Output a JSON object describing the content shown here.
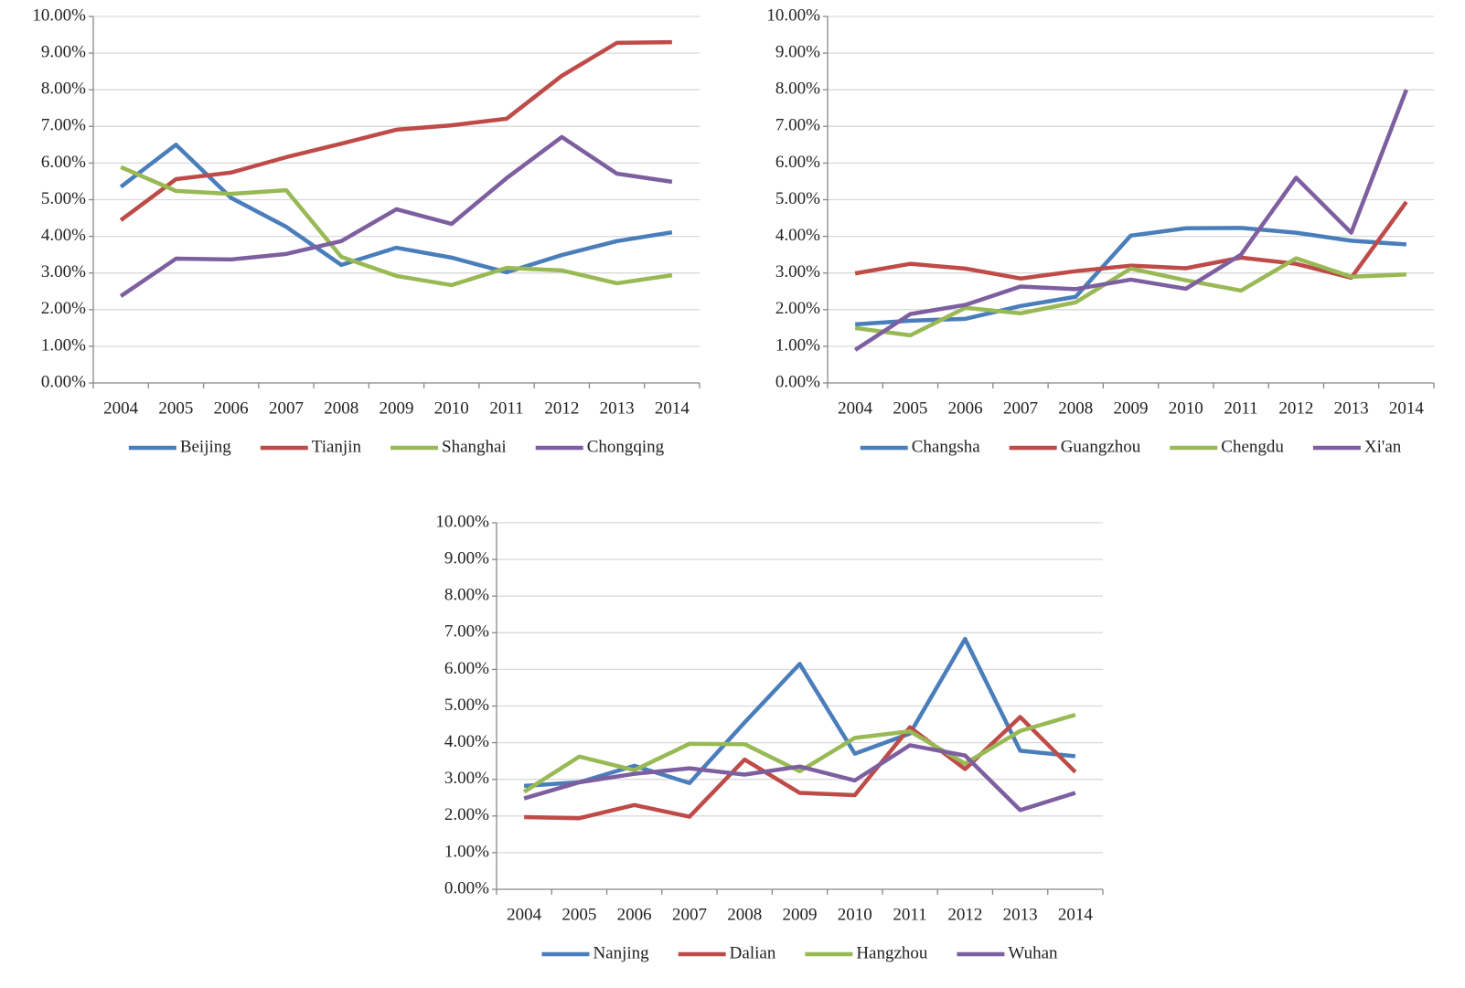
{
  "chart_data": [
    {
      "type": "line",
      "categories": [
        "2004",
        "2005",
        "2006",
        "2007",
        "2008",
        "2009",
        "2010",
        "2011",
        "2012",
        "2013",
        "2014"
      ],
      "series": [
        {
          "name": "Beijing",
          "color": "#4a7ebb",
          "values": [
            5.35,
            6.5,
            5.05,
            4.26,
            3.22,
            3.69,
            3.42,
            3.02,
            3.49,
            3.87,
            4.11
          ]
        },
        {
          "name": "Tianjin",
          "color": "#be4b48",
          "values": [
            4.44,
            5.56,
            5.74,
            6.16,
            6.53,
            6.91,
            7.03,
            7.21,
            8.38,
            9.28,
            9.3
          ]
        },
        {
          "name": "Shanghai",
          "color": "#98b954",
          "values": [
            5.89,
            5.24,
            5.16,
            5.26,
            3.44,
            2.92,
            2.67,
            3.14,
            3.07,
            2.72,
            2.94
          ]
        },
        {
          "name": "Chongqing",
          "color": "#7d5fa0",
          "values": [
            2.37,
            3.39,
            3.37,
            3.52,
            3.87,
            4.74,
            4.34,
            5.59,
            6.71,
            5.71,
            5.49
          ]
        }
      ],
      "ylim": [
        0,
        10
      ],
      "yticks": [
        {
          "value": 0,
          "label": "0.00%"
        },
        {
          "value": 1,
          "label": "1.00%"
        },
        {
          "value": 2,
          "label": "2.00%"
        },
        {
          "value": 3,
          "label": "3.00%"
        },
        {
          "value": 4,
          "label": "4.00%"
        },
        {
          "value": 5,
          "label": "5.00%"
        },
        {
          "value": 6,
          "label": "6.00%"
        },
        {
          "value": 7,
          "label": "7.00%"
        },
        {
          "value": 8,
          "label": "8.00%"
        },
        {
          "value": 9,
          "label": "9.00%"
        },
        {
          "value": 10,
          "label": "10.00%"
        }
      ],
      "grid": true
    },
    {
      "type": "line",
      "categories": [
        "2004",
        "2005",
        "2006",
        "2007",
        "2008",
        "2009",
        "2010",
        "2011",
        "2012",
        "2013",
        "2014"
      ],
      "series": [
        {
          "name": "Changsha",
          "color": "#4a7ebb",
          "values": [
            1.6,
            1.7,
            1.75,
            2.1,
            2.35,
            4.02,
            4.22,
            4.23,
            4.1,
            3.88,
            3.78
          ]
        },
        {
          "name": "Guangzhou",
          "color": "#be4b48",
          "values": [
            2.99,
            3.25,
            3.12,
            2.85,
            3.05,
            3.2,
            3.13,
            3.42,
            3.25,
            2.87,
            4.94
          ]
        },
        {
          "name": "Chengdu",
          "color": "#98b954",
          "values": [
            1.5,
            1.3,
            2.05,
            1.9,
            2.2,
            3.12,
            2.8,
            2.52,
            3.4,
            2.9,
            2.96
          ]
        },
        {
          "name": "Xi'an",
          "color": "#7d5fa0",
          "values": [
            0.9,
            1.88,
            2.13,
            2.63,
            2.56,
            2.82,
            2.57,
            3.5,
            5.6,
            4.1,
            8.0
          ]
        }
      ],
      "ylim": [
        0,
        10
      ],
      "yticks": [
        {
          "value": 0,
          "label": "0.00%"
        },
        {
          "value": 1,
          "label": "1.00%"
        },
        {
          "value": 2,
          "label": "2.00%"
        },
        {
          "value": 3,
          "label": "3.00%"
        },
        {
          "value": 4,
          "label": "4.00%"
        },
        {
          "value": 5,
          "label": "5.00%"
        },
        {
          "value": 6,
          "label": "6.00%"
        },
        {
          "value": 7,
          "label": "7.00%"
        },
        {
          "value": 8,
          "label": "8.00%"
        },
        {
          "value": 9,
          "label": "9.00%"
        },
        {
          "value": 10,
          "label": "10.00%"
        }
      ],
      "grid": true
    },
    {
      "type": "line",
      "categories": [
        "2004",
        "2005",
        "2006",
        "2007",
        "2008",
        "2009",
        "2010",
        "2011",
        "2012",
        "2013",
        "2014"
      ],
      "series": [
        {
          "name": "Nanjing",
          "color": "#4a7ebb",
          "values": [
            2.82,
            2.92,
            3.37,
            2.9,
            4.55,
            6.15,
            3.7,
            4.25,
            6.83,
            3.78,
            3.63
          ]
        },
        {
          "name": "Dalian",
          "color": "#be4b48",
          "values": [
            1.97,
            1.94,
            2.3,
            1.98,
            3.54,
            2.63,
            2.57,
            4.42,
            3.28,
            4.7,
            3.2
          ]
        },
        {
          "name": "Hangzhou",
          "color": "#98b954",
          "values": [
            2.66,
            3.62,
            3.25,
            3.97,
            3.96,
            3.22,
            4.13,
            4.31,
            3.43,
            4.32,
            4.76
          ]
        },
        {
          "name": "Wuhan",
          "color": "#7d5fa0",
          "values": [
            2.48,
            2.92,
            3.15,
            3.3,
            3.13,
            3.35,
            2.97,
            3.93,
            3.65,
            2.16,
            2.63
          ]
        }
      ],
      "ylim": [
        0,
        10
      ],
      "yticks": [
        {
          "value": 0,
          "label": "0.00%"
        },
        {
          "value": 1,
          "label": "1.00%"
        },
        {
          "value": 2,
          "label": "2.00%"
        },
        {
          "value": 3,
          "label": "3.00%"
        },
        {
          "value": 4,
          "label": "4.00%"
        },
        {
          "value": 5,
          "label": "5.00%"
        },
        {
          "value": 6,
          "label": "6.00%"
        },
        {
          "value": 7,
          "label": "7.00%"
        },
        {
          "value": 8,
          "label": "8.00%"
        },
        {
          "value": 9,
          "label": "9.00%"
        },
        {
          "value": 10,
          "label": "10.00%"
        }
      ],
      "grid": true
    }
  ]
}
